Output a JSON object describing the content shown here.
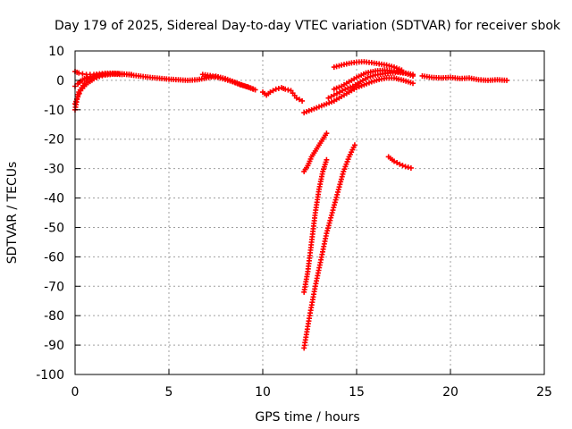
{
  "chart_data": {
    "type": "scatter",
    "title": "Day 179 of 2025, Sidereal Day-to-day VTEC variation (SDTVAR) for receiver sbok",
    "xlabel": "GPS time / hours",
    "ylabel": "SDTVAR / TECUs",
    "xlim": [
      0,
      25
    ],
    "ylim": [
      -100,
      10
    ],
    "xticks": [
      0,
      5,
      10,
      15,
      20,
      25
    ],
    "yticks": [
      10,
      0,
      -10,
      -20,
      -30,
      -40,
      -50,
      -60,
      -70,
      -80,
      -90,
      -100
    ],
    "grid": true,
    "marker": "plus",
    "color": "#ff0000",
    "series": [
      {
        "x": [
          0,
          0.2,
          0.4,
          0.6,
          0.8,
          1,
          1.3,
          1.6,
          2,
          2.5,
          3,
          3.5,
          4,
          4.5,
          5,
          5.5,
          6,
          6.5,
          7,
          7.5,
          8,
          8.5,
          9,
          9.5
        ],
        "y": [
          3,
          2.5,
          2.2,
          2,
          2,
          2,
          2.2,
          2.4,
          2.4,
          2.2,
          1.8,
          1.4,
          1,
          0.7,
          0.4,
          0.2,
          0,
          0.2,
          0.8,
          1.4,
          0.6,
          -0.6,
          -1.8,
          -3
        ]
      },
      {
        "x": [
          0,
          0.1,
          0.2,
          0.35,
          0.5,
          0.7,
          1,
          1.3,
          1.6,
          2,
          2.5,
          3
        ],
        "y": [
          -10,
          -6.5,
          -4,
          -2.5,
          -1,
          0.4,
          1.4,
          2,
          2.2,
          2.4,
          2.2,
          2
        ]
      },
      {
        "x": [
          0,
          0.15,
          0.3,
          0.5,
          0.7,
          1,
          1.3,
          1.6,
          2,
          2.5
        ],
        "y": [
          -8,
          -5.5,
          -3.5,
          -2,
          -0.8,
          0.5,
          1.3,
          1.8,
          2.1,
          2
        ]
      },
      {
        "x": [
          0,
          0.15,
          0.3,
          0.5,
          0.8,
          1.1,
          1.5,
          1.9,
          2.3
        ],
        "y": [
          -2,
          -1.2,
          -0.2,
          0.6,
          1.2,
          1.6,
          2,
          2.2,
          2.3
        ]
      },
      {
        "x": [
          6.8,
          7.2,
          7.6,
          8,
          8.4,
          8.8,
          9.2,
          9.6
        ],
        "y": [
          2,
          1.6,
          1,
          0.3,
          -0.5,
          -1.5,
          -2.2,
          -3.2
        ]
      },
      {
        "x": [
          10,
          10.2,
          10.4,
          10.7,
          11,
          11.2,
          11.5,
          11.8,
          12.1
        ],
        "y": [
          -4,
          -5,
          -4,
          -3,
          -2.5,
          -3,
          -3.5,
          -6,
          -7
        ]
      },
      {
        "x": [
          12.2,
          12.6,
          13,
          13.4,
          13.8,
          14.2,
          14.6,
          15,
          15.4,
          15.8,
          16.2,
          16.6,
          17,
          17.5,
          18
        ],
        "y": [
          -11,
          -10,
          -9,
          -8,
          -7,
          -5.5,
          -4,
          -2.5,
          -1.5,
          -0.5,
          0.3,
          0.8,
          0.8,
          0,
          -1
        ]
      },
      {
        "x": [
          13.5,
          13.8,
          14.1,
          14.4,
          14.8,
          15.2,
          15.6,
          16,
          16.4,
          16.8,
          17.2,
          17.6,
          18
        ],
        "y": [
          -6,
          -5,
          -4,
          -3,
          -2,
          -0.5,
          1,
          1.8,
          2.2,
          2.5,
          2.7,
          2.4,
          1.5
        ]
      },
      {
        "x": [
          13.8,
          14.2,
          14.6,
          15,
          15.5,
          16,
          16.5,
          17,
          17.5,
          18
        ],
        "y": [
          -3,
          -2,
          -0.5,
          1,
          2.5,
          3.2,
          3.5,
          3.2,
          2.6,
          2
        ]
      },
      {
        "x": [
          13.8,
          14.2,
          14.6,
          15,
          15.4,
          15.8,
          16.2,
          16.6,
          17,
          17.4
        ],
        "y": [
          4.5,
          5.2,
          5.8,
          6.2,
          6.3,
          6,
          5.6,
          5.2,
          4.5,
          3.5
        ]
      },
      {
        "x": [
          18.5,
          19,
          19.5,
          20,
          20.5,
          21,
          21.5,
          22,
          22.5,
          23
        ],
        "y": [
          1.5,
          1,
          0.8,
          1,
          0.6,
          0.8,
          0.2,
          0,
          0.2,
          0
        ]
      },
      {
        "x": [
          12.2,
          12.4,
          12.6,
          12.8,
          13,
          13.2,
          13.4
        ],
        "y": [
          -31,
          -29,
          -26,
          -24,
          -22,
          -20,
          -18
        ]
      },
      {
        "x": [
          12.2,
          12.4,
          12.6,
          12.8,
          13,
          13.2,
          13.4
        ],
        "y": [
          -72,
          -65,
          -55,
          -45,
          -37,
          -31,
          -27
        ]
      },
      {
        "x": [
          12.2,
          12.5,
          12.8,
          13.1,
          13.4,
          13.7,
          14,
          14.3,
          14.6,
          14.9
        ],
        "y": [
          -91,
          -80,
          -70,
          -61,
          -52,
          -45,
          -38,
          -31,
          -26,
          -22
        ]
      },
      {
        "x": [
          16.7,
          17,
          17.3,
          17.6,
          17.9
        ],
        "y": [
          -26,
          -27.5,
          -28.5,
          -29.3,
          -29.8
        ]
      }
    ]
  }
}
